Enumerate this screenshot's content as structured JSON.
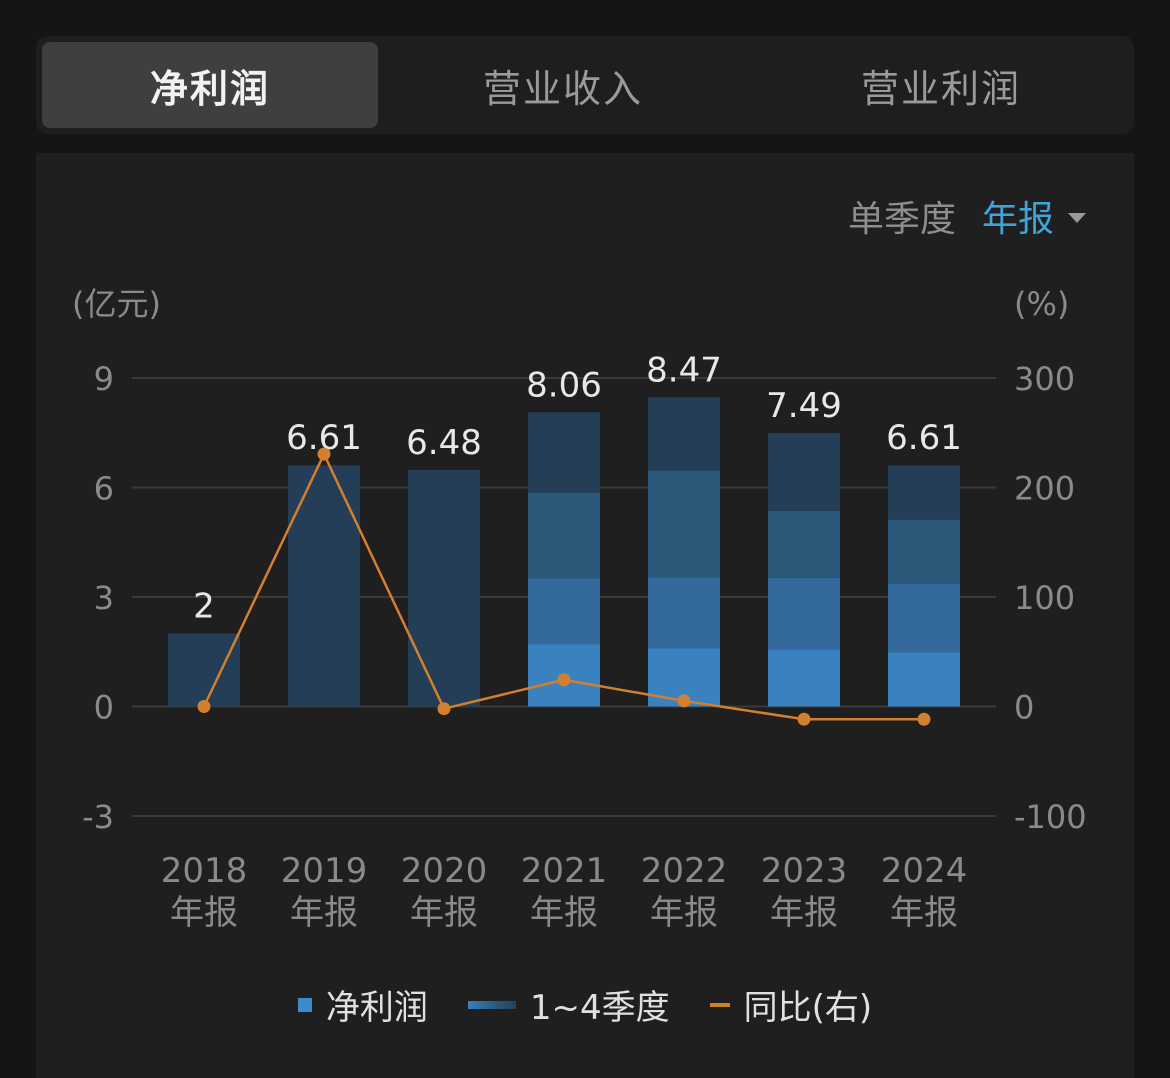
{
  "tabs": [
    {
      "label": "净利润",
      "active": true
    },
    {
      "label": "营业收入",
      "active": false
    },
    {
      "label": "营业利润",
      "active": false
    }
  ],
  "period_toggle": {
    "options": [
      {
        "label": "单季度",
        "selected": false
      },
      {
        "label": "年报",
        "selected": true
      }
    ]
  },
  "legend": [
    {
      "label": "净利润",
      "icon": "square"
    },
    {
      "label": "1~4季度",
      "icon": "gradient-bar"
    },
    {
      "label": "同比(右)",
      "icon": "line"
    }
  ],
  "colors": {
    "q1": "#3a82bf",
    "q2": "#336a9b",
    "q3": "#2b5779",
    "q4": "#243e57",
    "yoy_line": "#d27f2f",
    "accent": "#3fa5d8"
  },
  "chart_data": {
    "type": "bar",
    "stacked": true,
    "left_unit": "(亿元)",
    "right_unit": "(%)",
    "categories": [
      "2018\n年报",
      "2019\n年报",
      "2020\n年报",
      "2021\n年报",
      "2022\n年报",
      "2023\n年报",
      "2024\n年报"
    ],
    "totals": [
      2,
      6.61,
      6.48,
      8.06,
      8.47,
      7.49,
      6.61
    ],
    "total_labels": [
      "2",
      "6.61",
      "6.48",
      "8.06",
      "8.47",
      "7.49",
      "6.61"
    ],
    "quarters": [
      [
        2
      ],
      [
        6.61
      ],
      [
        6.48
      ],
      [
        1.71,
        1.8,
        2.35,
        2.2
      ],
      [
        1.59,
        1.95,
        2.93,
        2.0
      ],
      [
        1.57,
        1.96,
        1.83,
        2.13
      ],
      [
        1.49,
        1.87,
        1.76,
        1.49
      ]
    ],
    "yoy": [
      0,
      230.5,
      -2,
      24.4,
      5.1,
      -11.6,
      -11.7
    ],
    "ylim_left": [
      -3,
      9
    ],
    "yticks_left": [
      -3,
      0,
      3,
      6,
      9
    ],
    "ylim_right": [
      -100,
      300
    ],
    "yticks_right": [
      -100,
      0,
      100,
      200,
      300
    ],
    "grid": true
  }
}
